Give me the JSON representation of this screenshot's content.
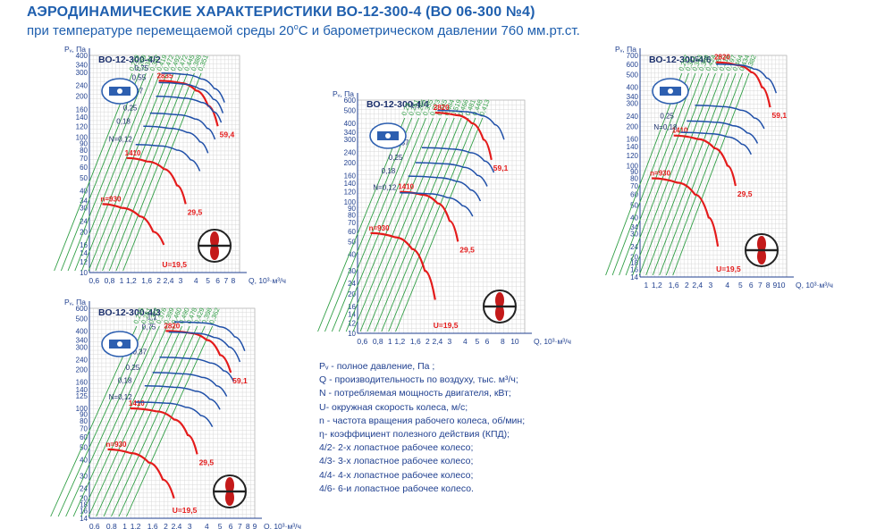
{
  "header": {
    "title": "АЭРОДИНАМИЧЕСКИЕ ХАРАКТЕРИСТИКИ ВО-12-300-4 (ВО 06-300 №4)",
    "subtitle_a": "при температуре перемещаемой среды 20",
    "subtitle_deg": "o",
    "subtitle_b": "С и барометрическом давлении 760 мм.рт.ст."
  },
  "colors": {
    "blue_text": "#1f5fae",
    "grid": "#d8d8d8",
    "eff_green": "#2f9e44",
    "rpm_red": "#e41b1b",
    "power_blue": "#1f4fa8",
    "logo_blue": "#2d5fb0"
  },
  "legend": [
    "Pᵥ - полное давление, Па ;",
    "Q - производительность по воздуху, тыс. м³/ч;",
    "N - потребляемая мощность двигателя, кВт;",
    "U- окружная скорость колеса, м/с;",
    "n - частота вращения рабочего колеса, об/мин;",
    "η- коэффициент полезного действия (КПД);",
    "4/2- 2-х  лопастное рабочее колесо;",
    "4/3- 3-х  лопастное рабочее колесо;",
    "4/4- 4-х  лопастное рабочее колесо;",
    "4/6- 6-и  лопастное рабочее колесо."
  ],
  "chart_data": [
    {
      "type": "line",
      "title": "ВО-12-300-4/2",
      "ylabel": "Pᵥ, Па",
      "xlabel": "Q, 10³·м³/ч",
      "xscale": "log",
      "yscale": "log",
      "xlim": [
        0.55,
        9
      ],
      "ylim": [
        10,
        400
      ],
      "xticks": [
        "0,6",
        "0,8",
        "1",
        "1,2",
        "1,6",
        "2",
        "2,4",
        "3",
        "4",
        "5",
        "6",
        "7",
        "8"
      ],
      "yticks": [
        "400",
        "340",
        "300",
        "240",
        "200",
        "160",
        "140",
        "120",
        "100",
        "90",
        "80",
        "70",
        "60",
        "50",
        "40",
        "34",
        "30",
        "24",
        "20",
        "16",
        "14",
        "12",
        "10"
      ],
      "series": [
        {
          "name": "n=930",
          "role": "rpm",
          "x": [
            0.7,
            1.0,
            1.4,
            1.8,
            2.2
          ],
          "y": [
            32,
            30,
            26,
            20,
            16
          ]
        },
        {
          "name": "1410",
          "role": "rpm",
          "x": [
            1.1,
            1.6,
            2.2,
            2.8,
            3.3
          ],
          "y": [
            70,
            66,
            58,
            44,
            32
          ]
        },
        {
          "name": "2835",
          "role": "rpm",
          "x": [
            2.0,
            3.0,
            4.0,
            5.0,
            6.0
          ],
          "y": [
            260,
            250,
            220,
            170,
            120
          ]
        },
        {
          "name": "N=0,12",
          "role": "power",
          "x": [
            1.3,
            2.0,
            2.8,
            3.6,
            4.3
          ],
          "y": [
            88,
            86,
            80,
            68,
            56
          ]
        },
        {
          "name": "0,18",
          "role": "power",
          "x": [
            1.5,
            2.4,
            3.4,
            4.3,
            5.0
          ],
          "y": [
            120,
            116,
            108,
            92,
            76
          ]
        },
        {
          "name": "0,25",
          "role": "power",
          "x": [
            1.7,
            2.8,
            3.9,
            4.9,
            5.7
          ],
          "y": [
            150,
            146,
            136,
            116,
            96
          ]
        },
        {
          "name": "0,37",
          "role": "power",
          "x": [
            1.9,
            3.1,
            4.4,
            5.5,
            6.4
          ],
          "y": [
            200,
            194,
            180,
            154,
            128
          ]
        },
        {
          "name": "0,55",
          "role": "power",
          "x": [
            2.0,
            3.1,
            4.3,
            5.5,
            6.6
          ],
          "y": [
            252,
            246,
            226,
            190,
            150
          ]
        },
        {
          "name": "0,75",
          "role": "power",
          "x": [
            2.1,
            3.2,
            4.4,
            5.6,
            6.8
          ],
          "y": [
            296,
            290,
            268,
            228,
            180
          ]
        }
      ],
      "efficiency_labels": [
        "0,219",
        "0,269",
        "0,341",
        "0,347",
        "0,419",
        "0,472",
        "0,492",
        "0,472",
        "0,445",
        "0,388",
        "0,351"
      ],
      "annotations": [
        "59,4",
        "29,5",
        "U=19,5"
      ]
    },
    {
      "type": "line",
      "title": "ВО-12-300-4/3",
      "ylabel": "Pᵥ, Па",
      "xlabel": "Q, 10³·м³/ч",
      "xscale": "log",
      "yscale": "log",
      "xlim": [
        0.55,
        9
      ],
      "ylim": [
        14,
        600
      ],
      "xticks": [
        "0,6",
        "0,8",
        "1",
        "1,2",
        "1,6",
        "2",
        "2,4",
        "3",
        "4",
        "5",
        "6",
        "7",
        "8",
        "9"
      ],
      "yticks": [
        "600",
        "500",
        "400",
        "340",
        "300",
        "240",
        "200",
        "160",
        "140",
        "125",
        "100",
        "90",
        "80",
        "70",
        "60",
        "50",
        "40",
        "30",
        "24",
        "20",
        "18",
        "16",
        "14"
      ],
      "series": [
        {
          "name": "n=930",
          "role": "rpm",
          "x": [
            0.75,
            1.1,
            1.5,
            1.9,
            2.3
          ],
          "y": [
            48,
            45,
            38,
            28,
            20
          ]
        },
        {
          "name": "1410",
          "role": "rpm",
          "x": [
            1.1,
            1.7,
            2.3,
            2.9,
            3.4
          ],
          "y": [
            100,
            95,
            82,
            62,
            44
          ]
        },
        {
          "name": "2820",
          "role": "rpm",
          "x": [
            2.0,
            3.0,
            4.0,
            5.0,
            6.0
          ],
          "y": [
            400,
            385,
            340,
            260,
            190
          ]
        },
        {
          "name": "N=0,12",
          "role": "power",
          "x": [
            1.2,
            2.0,
            2.8,
            3.6,
            4.4
          ],
          "y": [
            112,
            110,
            102,
            88,
            72
          ]
        },
        {
          "name": "0,18",
          "role": "power",
          "x": [
            1.4,
            2.3,
            3.3,
            4.2,
            5.0
          ],
          "y": [
            150,
            146,
            136,
            118,
            98
          ]
        },
        {
          "name": "0,25",
          "role": "power",
          "x": [
            1.6,
            2.6,
            3.7,
            4.7,
            5.6
          ],
          "y": [
            190,
            186,
            174,
            150,
            124
          ]
        },
        {
          "name": "0,37",
          "role": "power",
          "x": [
            1.8,
            3.0,
            4.2,
            5.3,
            6.3
          ],
          "y": [
            250,
            244,
            226,
            196,
            162
          ]
        },
        {
          "name": "0,75",
          "role": "power",
          "x": [
            2.1,
            3.3,
            4.5,
            5.8,
            7.0
          ],
          "y": [
            392,
            384,
            356,
            300,
            230
          ]
        },
        {
          "name": "1,1",
          "role": "power",
          "x": [
            2.3,
            3.6,
            5.0,
            6.4,
            7.6
          ],
          "y": [
            470,
            462,
            430,
            360,
            280
          ]
        }
      ],
      "efficiency_labels": [
        "0,215",
        "0,261",
        "0,322",
        "0,376",
        "0,399",
        "0,460",
        "0,490",
        "0,478",
        "0,429",
        "0,398",
        "0,362"
      ],
      "annotations": [
        "59,1",
        "29,5",
        "U=19,5"
      ]
    },
    {
      "type": "line",
      "title": "ВО-12-300-4/4",
      "ylabel": "Pᵥ, Па",
      "xlabel": "Q, 10³·м³/ч",
      "xscale": "log",
      "yscale": "log",
      "xlim": [
        0.55,
        12
      ],
      "ylim": [
        10,
        600
      ],
      "xticks": [
        "0,6",
        "0,8",
        "1",
        "1,2",
        "1,6",
        "2",
        "2,4",
        "3",
        "4",
        "5",
        "6",
        "8",
        "10"
      ],
      "yticks": [
        "600",
        "500",
        "400",
        "340",
        "300",
        "240",
        "200",
        "160",
        "140",
        "120",
        "100",
        "90",
        "80",
        "70",
        "60",
        "50",
        "40",
        "30",
        "24",
        "20",
        "16",
        "14",
        "12",
        "10"
      ],
      "series": [
        {
          "name": "n=930",
          "role": "rpm",
          "x": [
            0.7,
            1.1,
            1.5,
            1.9,
            2.3
          ],
          "y": [
            58,
            54,
            44,
            30,
            18
          ]
        },
        {
          "name": "1410",
          "role": "rpm",
          "x": [
            1.2,
            1.8,
            2.4,
            3.0,
            3.5
          ],
          "y": [
            120,
            114,
            98,
            72,
            50
          ]
        },
        {
          "name": "2820",
          "role": "rpm",
          "x": [
            2.3,
            3.4,
            4.5,
            5.6,
            6.5
          ],
          "y": [
            480,
            460,
            400,
            300,
            210
          ]
        },
        {
          "name": "N=0,12",
          "role": "power",
          "x": [
            1.2,
            2.0,
            2.9,
            3.8,
            4.6
          ],
          "y": [
            118,
            116,
            108,
            94,
            78
          ]
        },
        {
          "name": "0,18",
          "role": "power",
          "x": [
            1.4,
            2.4,
            3.4,
            4.4,
            5.3
          ],
          "y": [
            158,
            154,
            144,
            124,
            102
          ]
        },
        {
          "name": "0,25",
          "role": "power",
          "x": [
            1.6,
            2.7,
            3.9,
            5.0,
            6.0
          ],
          "y": [
            200,
            196,
            184,
            160,
            132
          ]
        },
        {
          "name": "0,37",
          "role": "power",
          "x": [
            1.8,
            3.1,
            4.4,
            5.7,
            6.8
          ],
          "y": [
            260,
            254,
            238,
            206,
            168
          ]
        },
        {
          "name": "1,1",
          "role": "power",
          "x": [
            2.4,
            3.9,
            5.4,
            6.9,
            8.2
          ],
          "y": [
            500,
            490,
            456,
            390,
            300
          ]
        }
      ],
      "efficiency_labels": [
        "0,23",
        "0,261",
        "0,295",
        "0,335",
        "0,373",
        "0,445",
        "0,484",
        "0,519",
        "0,466",
        "0,481",
        "0,448",
        "0,413"
      ],
      "annotations": [
        "59,1",
        "29,5",
        "U=19,5"
      ]
    },
    {
      "type": "line",
      "title": "ВО-12-300-4/6",
      "ylabel": "Pᵥ, Па",
      "xlabel": "Q, 10³·м³/ч",
      "xscale": "log",
      "yscale": "log",
      "xlim": [
        0.9,
        11
      ],
      "ylim": [
        14,
        700
      ],
      "xticks": [
        "1",
        "1,2",
        "1,6",
        "2",
        "2,4",
        "3",
        "4",
        "5",
        "6",
        "7",
        "8",
        "9",
        "10"
      ],
      "yticks": [
        "700",
        "600",
        "500",
        "400",
        "340",
        "300",
        "240",
        "200",
        "160",
        "140",
        "120",
        "100",
        "90",
        "80",
        "70",
        "60",
        "50",
        "40",
        "34",
        "30",
        "24",
        "20",
        "18",
        "16",
        "14"
      ],
      "series": [
        {
          "name": "n=930",
          "role": "rpm",
          "x": [
            1.1,
            1.7,
            2.3,
            2.9,
            3.4
          ],
          "y": [
            80,
            74,
            60,
            40,
            24
          ]
        },
        {
          "name": "1410",
          "role": "rpm",
          "x": [
            1.6,
            2.4,
            3.2,
            4.0,
            4.6
          ],
          "y": [
            170,
            160,
            136,
            100,
            70
          ]
        },
        {
          "name": "2820",
          "role": "rpm",
          "x": [
            3.3,
            4.7,
            6.0,
            7.2,
            8.3
          ],
          "y": [
            620,
            590,
            520,
            400,
            280
          ]
        },
        {
          "name": "N=0,18",
          "role": "power",
          "x": [
            1.8,
            2.9,
            4.0,
            5.1,
            6.0
          ],
          "y": [
            180,
            176,
            166,
            146,
            122
          ]
        },
        {
          "name": "0,25",
          "role": "power",
          "x": [
            2.0,
            3.2,
            4.4,
            5.6,
            6.7
          ],
          "y": [
            220,
            215,
            202,
            178,
            148
          ]
        },
        {
          "name": "0,37",
          "role": "power",
          "x": [
            2.3,
            3.6,
            5.0,
            6.3,
            7.5
          ],
          "y": [
            290,
            284,
            266,
            232,
            192
          ]
        },
        {
          "name": "1,5",
          "role": "power",
          "x": [
            3.3,
            4.8,
            6.3,
            7.8,
            9.2
          ],
          "y": [
            600,
            590,
            550,
            470,
            360
          ]
        }
      ],
      "efficiency_labels": [
        "0,247",
        "0,311",
        "0,343",
        "0,369",
        "0,424",
        "0,481",
        "0,516",
        "0,497",
        "0,464",
        "0,434",
        "0,382"
      ],
      "annotations": [
        "59,1",
        "29,5",
        "U=19,5"
      ]
    }
  ]
}
